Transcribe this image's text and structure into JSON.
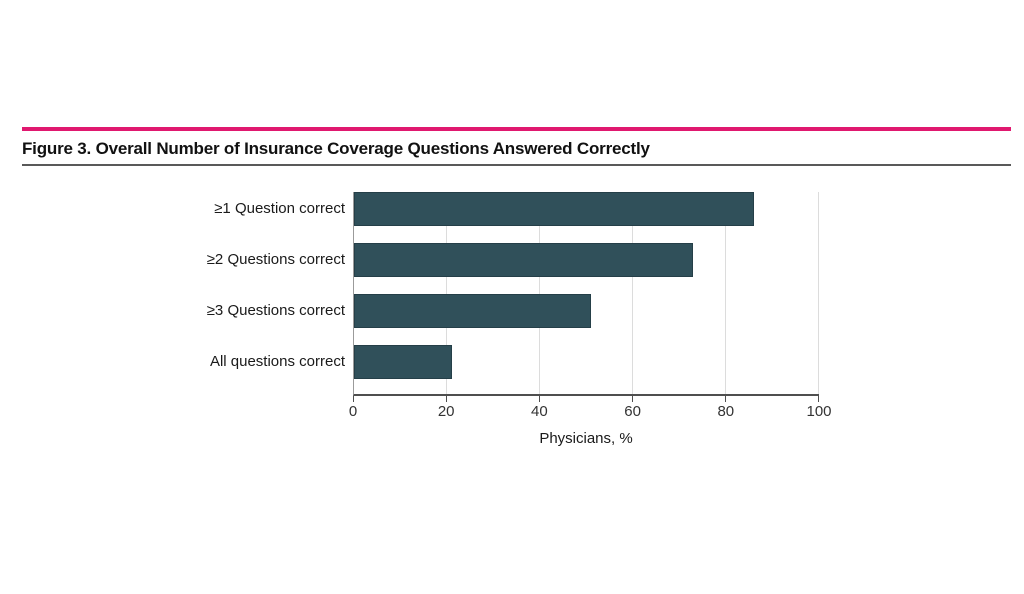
{
  "figure": {
    "title": "Figure 3. Overall Number of Insurance Coverage Questions Answered Correctly"
  },
  "chart_data": {
    "type": "bar",
    "orientation": "horizontal",
    "title": "Figure 3. Overall Number of Insurance Coverage Questions Answered Correctly",
    "categories": [
      "≥1 Question correct",
      "≥2 Questions correct",
      "≥3 Questions correct",
      "All questions correct"
    ],
    "values": [
      86,
      73,
      51,
      21
    ],
    "xlabel": "Physicians, %",
    "ylabel": "",
    "xlim": [
      0,
      100
    ],
    "xticks": [
      0,
      20,
      40,
      60,
      80,
      100
    ],
    "grid": "vertical",
    "legend": "none"
  },
  "style": {
    "accent_rule_color": "#e0186f",
    "divider_rule_color": "#595959",
    "bar_color": "#30505a",
    "bar_border_color": "#253f48",
    "gridline_color": "#dcdcdc",
    "axis_line_color": "#4f4f4f",
    "left_axis_color": "#9b9b9b",
    "text_color": "#1a1a1a"
  }
}
